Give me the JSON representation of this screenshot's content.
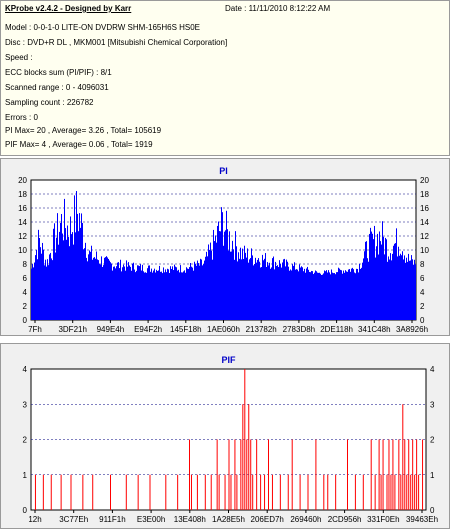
{
  "header": {
    "title": "KProbe v2.4.2 - Designed by Karr",
    "date": "Date : 11/11/2010 8:12:22 AM",
    "lines": [
      "Model : 0-0-1-0 LITE-ON DVDRW SHM-165H6S HS0E",
      "Disc : DVD+R DL , MKM001 [Mitsubishi Chemical Corporation]",
      "Speed :",
      "ECC blocks sum (PI/PIF) : 8/1",
      "Scanned range : 0 - 4096031",
      "Sampling count : 226782",
      "Errors : 0",
      "PI Max= 20 , Average= 3.26 , Total= 105619",
      "PIF Max= 4 , Average= 0.06 , Total= 1919"
    ]
  },
  "colors": {
    "pi": "#0000ff",
    "pif": "#ff0000",
    "title": "#0000c8",
    "grid": "#000080"
  },
  "chart_data": [
    {
      "type": "bar",
      "title": "PI",
      "ylim": [
        0,
        20
      ],
      "yticks": [
        0,
        2,
        4,
        6,
        8,
        10,
        12,
        14,
        16,
        18,
        20
      ],
      "xticks": [
        "7Fh",
        "3DF21h",
        "949E4h",
        "E94F2h",
        "145F18h",
        "1AE060h",
        "213782h",
        "2783D8h",
        "2DE118h",
        "341C48h",
        "3A8926h"
      ],
      "grid": true,
      "profile": [
        [
          0,
          8
        ],
        [
          0.02,
          14
        ],
        [
          0.04,
          9
        ],
        [
          0.06,
          14
        ],
        [
          0.08,
          18
        ],
        [
          0.1,
          16
        ],
        [
          0.12,
          20
        ],
        [
          0.15,
          11
        ],
        [
          0.2,
          9
        ],
        [
          0.3,
          8
        ],
        [
          0.4,
          8
        ],
        [
          0.45,
          9
        ],
        [
          0.48,
          14
        ],
        [
          0.5,
          18
        ],
        [
          0.51,
          15
        ],
        [
          0.55,
          11
        ],
        [
          0.65,
          9
        ],
        [
          0.75,
          7
        ],
        [
          0.85,
          8
        ],
        [
          0.88,
          13
        ],
        [
          0.91,
          15
        ],
        [
          0.93,
          12
        ],
        [
          0.96,
          14
        ],
        [
          0.98,
          10
        ],
        [
          1,
          9
        ]
      ],
      "baseline": 6
    },
    {
      "type": "bar",
      "title": "PIF",
      "ylim": [
        0,
        4
      ],
      "yticks": [
        0,
        1,
        2,
        3,
        4
      ],
      "xticks": [
        "12h",
        "3C77Eh",
        "911F1h",
        "E3E00h",
        "13E408h",
        "1A28E5h",
        "206ED7h",
        "269460h",
        "2CD956h",
        "331F0Eh",
        "39463Eh"
      ],
      "grid": true,
      "bars": [
        [
          0.01,
          1
        ],
        [
          0.03,
          1
        ],
        [
          0.05,
          1
        ],
        [
          0.075,
          1
        ],
        [
          0.1,
          1
        ],
        [
          0.13,
          1
        ],
        [
          0.155,
          1
        ],
        [
          0.2,
          1
        ],
        [
          0.24,
          1
        ],
        [
          0.27,
          1
        ],
        [
          0.3,
          1
        ],
        [
          0.34,
          1
        ],
        [
          0.37,
          1
        ],
        [
          0.4,
          2
        ],
        [
          0.405,
          1
        ],
        [
          0.42,
          1
        ],
        [
          0.44,
          1
        ],
        [
          0.455,
          1
        ],
        [
          0.47,
          2
        ],
        [
          0.475,
          1
        ],
        [
          0.49,
          1
        ],
        [
          0.5,
          2
        ],
        [
          0.505,
          1
        ],
        [
          0.515,
          2
        ],
        [
          0.52,
          1
        ],
        [
          0.53,
          2
        ],
        [
          0.535,
          3
        ],
        [
          0.54,
          4
        ],
        [
          0.545,
          2
        ],
        [
          0.55,
          3
        ],
        [
          0.555,
          2
        ],
        [
          0.56,
          1
        ],
        [
          0.57,
          2
        ],
        [
          0.58,
          1
        ],
        [
          0.59,
          1
        ],
        [
          0.6,
          2
        ],
        [
          0.61,
          1
        ],
        [
          0.63,
          1
        ],
        [
          0.65,
          1
        ],
        [
          0.66,
          2
        ],
        [
          0.68,
          1
        ],
        [
          0.7,
          1
        ],
        [
          0.72,
          2
        ],
        [
          0.74,
          1
        ],
        [
          0.75,
          1
        ],
        [
          0.77,
          1
        ],
        [
          0.8,
          2
        ],
        [
          0.82,
          1
        ],
        [
          0.84,
          1
        ],
        [
          0.86,
          2
        ],
        [
          0.87,
          1
        ],
        [
          0.88,
          2
        ],
        [
          0.885,
          1
        ],
        [
          0.89,
          2
        ],
        [
          0.9,
          1
        ],
        [
          0.905,
          2
        ],
        [
          0.91,
          1
        ],
        [
          0.915,
          2
        ],
        [
          0.92,
          1
        ],
        [
          0.93,
          2
        ],
        [
          0.935,
          1
        ],
        [
          0.94,
          3
        ],
        [
          0.945,
          2
        ],
        [
          0.95,
          1
        ],
        [
          0.955,
          2
        ],
        [
          0.96,
          1
        ],
        [
          0.965,
          2
        ],
        [
          0.97,
          1
        ],
        [
          0.975,
          2
        ],
        [
          0.98,
          1
        ],
        [
          0.99,
          2
        ]
      ]
    }
  ]
}
